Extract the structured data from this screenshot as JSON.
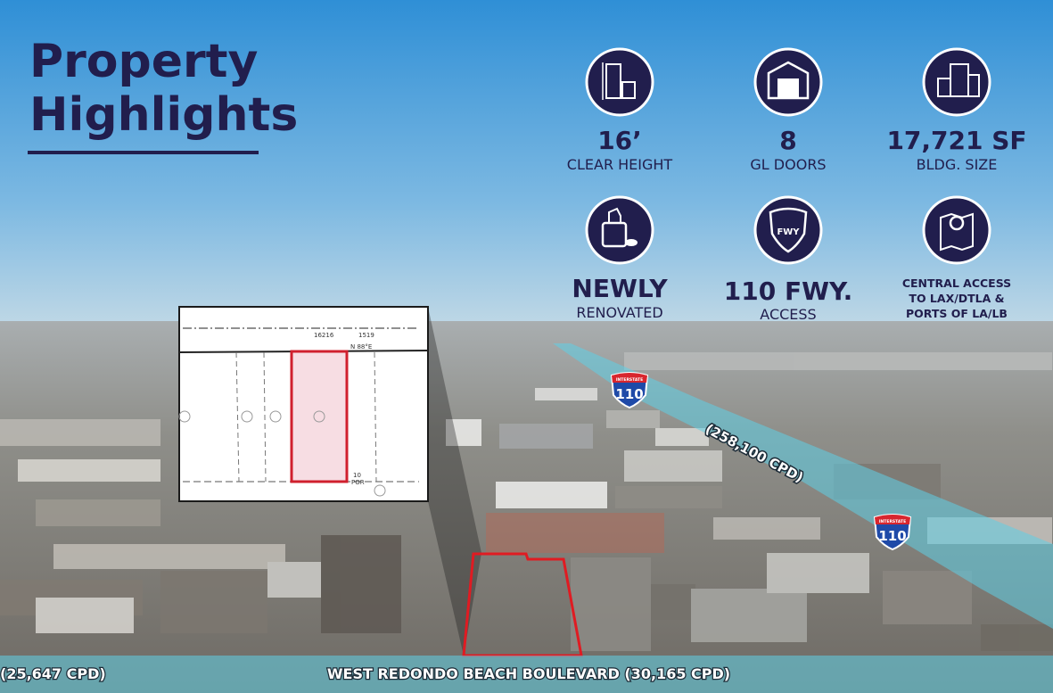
{
  "title_lines": [
    "Property",
    "Highlights"
  ],
  "highlights": [
    {
      "value": "16’",
      "label": "CLEAR HEIGHT"
    },
    {
      "value": "8",
      "label": "GL DOORS"
    },
    {
      "value": "17,721 SF",
      "label": "BLDG. SIZE"
    },
    {
      "value": "NEWLY",
      "label": "RENOVATED"
    },
    {
      "value": "110 FWY.",
      "label": "ACCESS",
      "icon_text": "FWY"
    },
    {
      "lines": [
        "CENTRAL ACCESS",
        "TO LAX/DTLA &",
        "PORTS OF LA/LB"
      ]
    }
  ],
  "parcel_map": {
    "labels": [
      "16216",
      "1519",
      "N 88°E",
      "10",
      "POR"
    ]
  },
  "shields": [
    {
      "top": "INTERSTATE",
      "number": "110"
    },
    {
      "top": "INTERSTATE",
      "number": "110"
    }
  ],
  "freeway_traffic": "(258,100 CPD)",
  "street": {
    "left": "(25,647 CPD)",
    "main": "WEST REDONDO BEACH BOULEVARD (30,165 CPD)"
  }
}
